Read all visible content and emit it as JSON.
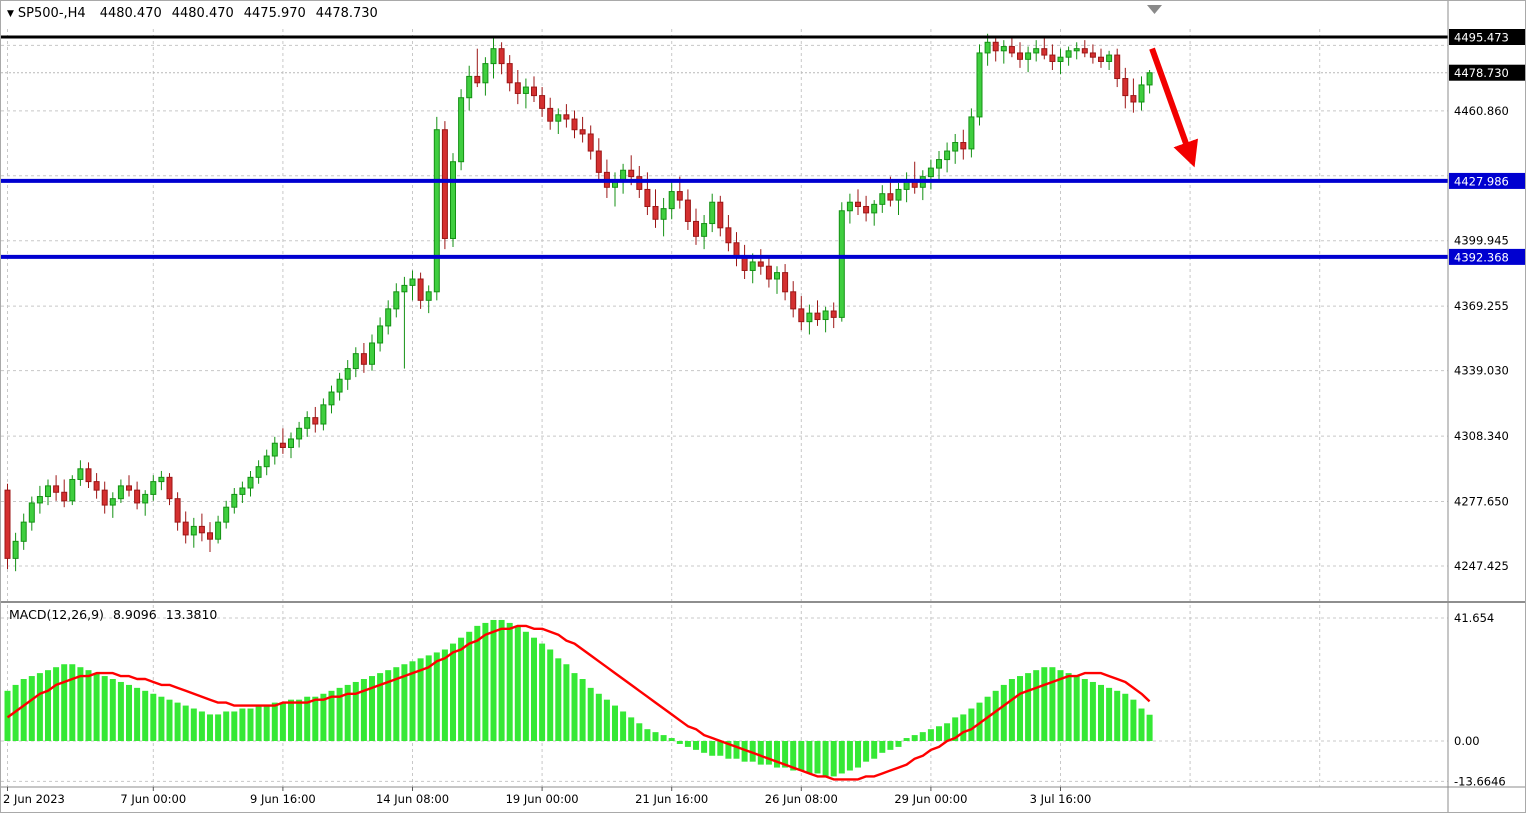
{
  "info_bar": {
    "symbol_period": "SP500-,H4",
    "open": "4480.470",
    "high": "4480.470",
    "low": "4475.970",
    "close": "4478.730"
  },
  "macd_panel": {
    "label": "MACD(12,26,9)",
    "macd_value": "8.9096",
    "signal_value": "13.3810"
  },
  "colors": {
    "background": "#ffffff",
    "grid": "#c8c8c8",
    "candle_up_fill": "#3fce3f",
    "candle_up_stroke": "#149114",
    "candle_down_fill": "#d43030",
    "candle_down_stroke": "#9c1616",
    "macd_histogram": "#35e835",
    "macd_signal": "#ff0000",
    "resistance_line": "#000000",
    "support_line": "#0000d0",
    "badge_black": "#000000",
    "badge_blue": "#0000d0",
    "arrow": "#f20000",
    "axis_text": "#000000",
    "separator": "#8e8e8e",
    "current_price_line": "#b8b8b8",
    "shift_marker": "#8a8a8a"
  },
  "chart_data": [
    {
      "type": "candlestick",
      "symbol": "SP500-",
      "timeframe": "H4",
      "price_axis": {
        "labels": [
          {
            "text": "4495.473",
            "value": 4495.473,
            "badge": "black"
          },
          {
            "text": "4478.730",
            "value": 4478.73,
            "badge": "black"
          },
          {
            "text": "4460.860",
            "value": 4460.86,
            "badge": null
          },
          {
            "text": "4427.986",
            "value": 4427.986,
            "badge": "blue"
          },
          {
            "text": "4399.945",
            "value": 4399.945,
            "badge": null
          },
          {
            "text": "4392.368",
            "value": 4392.368,
            "badge": "blue"
          },
          {
            "text": "4369.255",
            "value": 4369.255,
            "badge": null
          },
          {
            "text": "4339.030",
            "value": 4339.03,
            "badge": null
          },
          {
            "text": "4308.340",
            "value": 4308.34,
            "badge": null
          },
          {
            "text": "4277.650",
            "value": 4277.65,
            "badge": null
          },
          {
            "text": "4247.425",
            "value": 4247.425,
            "badge": null
          }
        ],
        "unlabeled_gridlines": [
          4491.55,
          4430.4
        ]
      },
      "time_axis": {
        "labels": [
          {
            "bar": 0,
            "text": "2 Jun 2023"
          },
          {
            "bar": 18,
            "text": "7 Jun 00:00"
          },
          {
            "bar": 34,
            "text": "9 Jun 16:00"
          },
          {
            "bar": 50,
            "text": "14 Jun 08:00"
          },
          {
            "bar": 66,
            "text": "19 Jun 00:00"
          },
          {
            "bar": 82,
            "text": "21 Jun 16:00"
          },
          {
            "bar": 98,
            "text": "26 Jun 08:00"
          },
          {
            "bar": 114,
            "text": "29 Jun 00:00"
          },
          {
            "bar": 130,
            "text": "3 Jul 16:00"
          }
        ],
        "extra_gridline_bars": [
          146,
          162
        ]
      },
      "horizontal_lines": [
        {
          "price": 4495.473,
          "color": "#000000",
          "width": 3,
          "badge": "black"
        },
        {
          "price": 4427.986,
          "color": "#0000d0",
          "width": 4,
          "badge": "blue"
        },
        {
          "price": 4392.368,
          "color": "#0000d0",
          "width": 4,
          "badge": "blue"
        }
      ],
      "current_price": {
        "value": 4478.73,
        "text": "4478.730"
      },
      "annotations": [
        {
          "type": "arrow",
          "from_bar": 141.3,
          "from_price": 4490,
          "to_bar": 146.3,
          "to_price": 4437,
          "color": "#f20000",
          "width": 6
        }
      ],
      "candles": [
        [
          4283,
          4286,
          4246,
          4251
        ],
        [
          4251,
          4263,
          4245,
          4259
        ],
        [
          4259,
          4272,
          4255,
          4268
        ],
        [
          4268,
          4280,
          4264,
          4277
        ],
        [
          4277,
          4285,
          4272,
          4280
        ],
        [
          4280,
          4288,
          4276,
          4285
        ],
        [
          4285,
          4290,
          4278,
          4282
        ],
        [
          4282,
          4288,
          4275,
          4278
        ],
        [
          4278,
          4290,
          4276,
          4288
        ],
        [
          4288,
          4297,
          4285,
          4293
        ],
        [
          4293,
          4296,
          4284,
          4287
        ],
        [
          4287,
          4291,
          4279,
          4283
        ],
        [
          4283,
          4287,
          4272,
          4276
        ],
        [
          4276,
          4282,
          4270,
          4279
        ],
        [
          4279,
          4288,
          4277,
          4285
        ],
        [
          4285,
          4290,
          4280,
          4283
        ],
        [
          4283,
          4287,
          4274,
          4277
        ],
        [
          4277,
          4283,
          4271,
          4281
        ],
        [
          4281,
          4290,
          4278,
          4287
        ],
        [
          4287,
          4292,
          4283,
          4289
        ],
        [
          4289,
          4291,
          4276,
          4279
        ],
        [
          4279,
          4282,
          4264,
          4268
        ],
        [
          4268,
          4273,
          4258,
          4262
        ],
        [
          4262,
          4270,
          4256,
          4266
        ],
        [
          4266,
          4272,
          4259,
          4263
        ],
        [
          4263,
          4268,
          4254,
          4260
        ],
        [
          4260,
          4271,
          4258,
          4268
        ],
        [
          4268,
          4278,
          4265,
          4275
        ],
        [
          4275,
          4284,
          4272,
          4281
        ],
        [
          4281,
          4287,
          4277,
          4284
        ],
        [
          4284,
          4292,
          4280,
          4289
        ],
        [
          4289,
          4297,
          4286,
          4294
        ],
        [
          4294,
          4302,
          4290,
          4299
        ],
        [
          4299,
          4308,
          4295,
          4305
        ],
        [
          4305,
          4312,
          4300,
          4303
        ],
        [
          4303,
          4310,
          4298,
          4307
        ],
        [
          4307,
          4315,
          4303,
          4312
        ],
        [
          4312,
          4320,
          4308,
          4317
        ],
        [
          4317,
          4322,
          4310,
          4314
        ],
        [
          4314,
          4326,
          4311,
          4323
        ],
        [
          4323,
          4332,
          4319,
          4329
        ],
        [
          4329,
          4338,
          4325,
          4335
        ],
        [
          4335,
          4344,
          4330,
          4340
        ],
        [
          4340,
          4350,
          4336,
          4347
        ],
        [
          4347,
          4352,
          4338,
          4342
        ],
        [
          4342,
          4356,
          4339,
          4352
        ],
        [
          4352,
          4364,
          4348,
          4360
        ],
        [
          4360,
          4372,
          4356,
          4368
        ],
        [
          4368,
          4380,
          4364,
          4376
        ],
        [
          4376,
          4383,
          4340,
          4379
        ],
        [
          4379,
          4386,
          4372,
          4382
        ],
        [
          4382,
          4385,
          4368,
          4372
        ],
        [
          4372,
          4379,
          4366,
          4376
        ],
        [
          4376,
          4458,
          4372,
          4452
        ],
        [
          4452,
          4456,
          4396,
          4401
        ],
        [
          4401,
          4441,
          4397,
          4437
        ],
        [
          4437,
          4471,
          4433,
          4467
        ],
        [
          4467,
          4482,
          4461,
          4477
        ],
        [
          4477,
          4490,
          4472,
          4474
        ],
        [
          4474,
          4486,
          4468,
          4483
        ],
        [
          4483,
          4495,
          4476,
          4490
        ],
        [
          4490,
          4493,
          4478,
          4483
        ],
        [
          4483,
          4487,
          4470,
          4474
        ],
        [
          4474,
          4480,
          4464,
          4469
        ],
        [
          4469,
          4476,
          4462,
          4472
        ],
        [
          4472,
          4477,
          4465,
          4468
        ],
        [
          4468,
          4472,
          4458,
          4462
        ],
        [
          4462,
          4467,
          4452,
          4456
        ],
        [
          4456,
          4462,
          4450,
          4459
        ],
        [
          4459,
          4464,
          4453,
          4457
        ],
        [
          4457,
          4461,
          4448,
          4452
        ],
        [
          4452,
          4458,
          4446,
          4450
        ],
        [
          4450,
          4454,
          4438,
          4442
        ],
        [
          4442,
          4448,
          4428,
          4432
        ],
        [
          4432,
          4438,
          4420,
          4425
        ],
        [
          4425,
          4432,
          4416,
          4428
        ],
        [
          4428,
          4436,
          4422,
          4433
        ],
        [
          4433,
          4440,
          4426,
          4430
        ],
        [
          4430,
          4435,
          4420,
          4424
        ],
        [
          4424,
          4432,
          4412,
          4416
        ],
        [
          4416,
          4424,
          4406,
          4410
        ],
        [
          4410,
          4420,
          4402,
          4415
        ],
        [
          4415,
          4428,
          4410,
          4423
        ],
        [
          4423,
          4430,
          4415,
          4419
        ],
        [
          4419,
          4424,
          4405,
          4409
        ],
        [
          4409,
          4415,
          4398,
          4402
        ],
        [
          4402,
          4412,
          4396,
          4408
        ],
        [
          4408,
          4422,
          4404,
          4418
        ],
        [
          4418,
          4421,
          4402,
          4406
        ],
        [
          4406,
          4412,
          4395,
          4399
        ],
        [
          4399,
          4404,
          4388,
          4392
        ],
        [
          4392,
          4398,
          4382,
          4386
        ],
        [
          4386,
          4394,
          4380,
          4390
        ],
        [
          4390,
          4396,
          4384,
          4388
        ],
        [
          4388,
          4392,
          4378,
          4382
        ],
        [
          4382,
          4388,
          4375,
          4385
        ],
        [
          4385,
          4389,
          4372,
          4376
        ],
        [
          4376,
          4381,
          4364,
          4368
        ],
        [
          4368,
          4374,
          4358,
          4362
        ],
        [
          4362,
          4370,
          4356,
          4366
        ],
        [
          4366,
          4372,
          4360,
          4363
        ],
        [
          4363,
          4369,
          4357,
          4367
        ],
        [
          4367,
          4371,
          4359,
          4364
        ],
        [
          4364,
          4418,
          4362,
          4414
        ],
        [
          4414,
          4422,
          4408,
          4418
        ],
        [
          4418,
          4424,
          4412,
          4416
        ],
        [
          4416,
          4421,
          4409,
          4413
        ],
        [
          4413,
          4419,
          4407,
          4417
        ],
        [
          4417,
          4426,
          4413,
          4422
        ],
        [
          4422,
          4430,
          4416,
          4419
        ],
        [
          4419,
          4427,
          4412,
          4424
        ],
        [
          4424,
          4432,
          4418,
          4428
        ],
        [
          4428,
          4437,
          4422,
          4425
        ],
        [
          4425,
          4433,
          4419,
          4430
        ],
        [
          4430,
          4438,
          4424,
          4434
        ],
        [
          4434,
          4442,
          4428,
          4438
        ],
        [
          4438,
          4446,
          4432,
          4442
        ],
        [
          4442,
          4450,
          4436,
          4446
        ],
        [
          4446,
          4452,
          4438,
          4443
        ],
        [
          4443,
          4462,
          4439,
          4458
        ],
        [
          4458,
          4492,
          4454,
          4488
        ],
        [
          4488,
          4497,
          4482,
          4493
        ],
        [
          4493,
          4496,
          4484,
          4489
        ],
        [
          4489,
          4494,
          4483,
          4491
        ],
        [
          4491,
          4495,
          4486,
          4488
        ],
        [
          4488,
          4493,
          4481,
          4485
        ],
        [
          4485,
          4491,
          4479,
          4488
        ],
        [
          4488,
          4494,
          4484,
          4490
        ],
        [
          4490,
          4495,
          4485,
          4487
        ],
        [
          4487,
          4492,
          4480,
          4484
        ],
        [
          4484,
          4490,
          4478,
          4486
        ],
        [
          4486,
          4491,
          4482,
          4489
        ],
        [
          4489,
          4493,
          4485,
          4490
        ],
        [
          4490,
          4494,
          4486,
          4488
        ],
        [
          4488,
          4492,
          4483,
          4486
        ],
        [
          4486,
          4490,
          4481,
          4484
        ],
        [
          4484,
          4489,
          4480,
          4487
        ],
        [
          4487,
          4490,
          4472,
          4476
        ],
        [
          4476,
          4481,
          4462,
          4468
        ],
        [
          4468,
          4476,
          4460,
          4465
        ],
        [
          4465,
          4477,
          4461,
          4473
        ],
        [
          4473,
          4480,
          4469,
          4478.7
        ]
      ]
    },
    {
      "type": "bar",
      "name": "MACD",
      "params": "12,26,9",
      "y_axis_labels": [
        {
          "text": "41.654",
          "value": 41.654
        },
        {
          "text": "0.00",
          "value": 0
        },
        {
          "text": "-13.6646",
          "value": -13.6646
        }
      ],
      "histogram": [
        17,
        19,
        21,
        22,
        23,
        24,
        25,
        26,
        26,
        25,
        24,
        23,
        22,
        21,
        20,
        19,
        18,
        17,
        16,
        15,
        14,
        13,
        12,
        11,
        10,
        9,
        9,
        10,
        10,
        11,
        11,
        12,
        12,
        13,
        13,
        14,
        14,
        15,
        15,
        16,
        17,
        18,
        19,
        20,
        21,
        22,
        23,
        24,
        25,
        26,
        27,
        28,
        29,
        30,
        31,
        33,
        35,
        37,
        39,
        40,
        41,
        41,
        40,
        39,
        37,
        35,
        33,
        31,
        28,
        26,
        23,
        21,
        18,
        16,
        14,
        12,
        10,
        8,
        6,
        4,
        3,
        2,
        1,
        -1,
        -2,
        -3,
        -4,
        -5,
        -5,
        -6,
        -6,
        -7,
        -7,
        -8,
        -8,
        -9,
        -9,
        -10,
        -10,
        -11,
        -11,
        -12,
        -12,
        -11,
        -10,
        -9,
        -7,
        -6,
        -4,
        -3,
        -2,
        1,
        2,
        3,
        4,
        5,
        6,
        8,
        9,
        11,
        13,
        15,
        17,
        19,
        21,
        22,
        23,
        24,
        25,
        25,
        24,
        23,
        22,
        21,
        20,
        19,
        18,
        17,
        16,
        14,
        11,
        8.9
      ],
      "signal": [
        8,
        10,
        12,
        14,
        16,
        17,
        19,
        20,
        21,
        22,
        22,
        23,
        23,
        23,
        22,
        22,
        21,
        21,
        20,
        19,
        19,
        18,
        17,
        16,
        15,
        14,
        13,
        13,
        12,
        12,
        12,
        12,
        12,
        12,
        13,
        13,
        13,
        13,
        14,
        14,
        15,
        15,
        16,
        16,
        17,
        18,
        19,
        20,
        21,
        22,
        23,
        24,
        25,
        27,
        28,
        30,
        31,
        33,
        34,
        36,
        37,
        38,
        38,
        39,
        39,
        38,
        38,
        37,
        36,
        34,
        33,
        31,
        29,
        27,
        25,
        23,
        21,
        19,
        17,
        15,
        13,
        11,
        9,
        7,
        5,
        4,
        2,
        1,
        0,
        -1,
        -2,
        -3,
        -4,
        -5,
        -6,
        -7,
        -8,
        -9,
        -10,
        -11,
        -12,
        -12,
        -13,
        -13,
        -13,
        -13,
        -12,
        -12,
        -11,
        -10,
        -9,
        -8,
        -6,
        -5,
        -3,
        -2,
        0,
        1,
        3,
        4,
        6,
        8,
        10,
        12,
        14,
        16,
        17,
        18,
        19,
        20,
        21,
        22,
        22,
        23,
        23,
        23,
        22,
        21,
        20,
        18,
        16,
        13.4
      ]
    }
  ]
}
